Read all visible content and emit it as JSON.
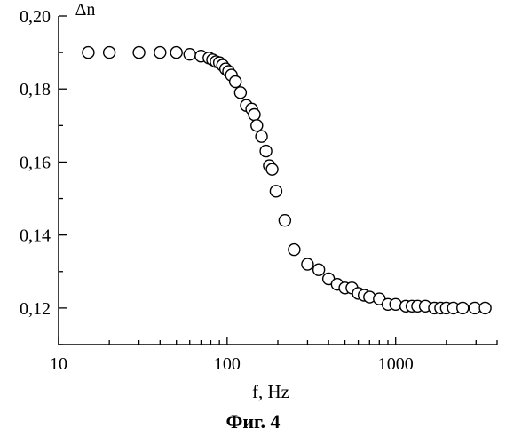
{
  "chart_data": {
    "type": "scatter",
    "xscale": "log",
    "xlim": [
      10,
      4000
    ],
    "ylim": [
      0.11,
      0.2
    ],
    "xticks": [
      10,
      100,
      1000
    ],
    "xtick_labels": [
      "10",
      "100",
      "1000"
    ],
    "yticks": [
      0.12,
      0.14,
      0.16,
      0.18,
      0.2
    ],
    "ytick_labels": [
      "0,12",
      "0,14",
      "0,16",
      "0,18",
      "0,20"
    ],
    "xlabel": "f, Hz",
    "ylabel": "Δn",
    "grid": false,
    "marker": "open-circle",
    "series": [
      {
        "x": [
          15,
          20,
          30,
          40,
          50,
          60,
          70,
          78,
          82,
          86,
          90,
          94,
          98,
          102,
          106,
          112,
          120,
          130,
          140,
          145,
          150,
          160,
          170,
          178,
          185,
          195,
          220,
          250,
          300,
          350,
          400,
          450,
          500,
          550,
          600,
          650,
          700,
          800,
          900,
          1000,
          1150,
          1250,
          1350,
          1500,
          1700,
          1850,
          2000,
          2200,
          2500,
          2950,
          3400
        ],
        "y": [
          0.19,
          0.19,
          0.19,
          0.19,
          0.19,
          0.1895,
          0.189,
          0.1885,
          0.188,
          0.1875,
          0.1872,
          0.1865,
          0.1855,
          0.1848,
          0.1838,
          0.182,
          0.179,
          0.1755,
          0.1745,
          0.173,
          0.17,
          0.167,
          0.163,
          0.159,
          0.158,
          0.152,
          0.144,
          0.136,
          0.132,
          0.1305,
          0.128,
          0.1265,
          0.1255,
          0.1255,
          0.124,
          0.1235,
          0.123,
          0.1225,
          0.121,
          0.121,
          0.1205,
          0.1205,
          0.1205,
          0.1205,
          0.12,
          0.12,
          0.12,
          0.12,
          0.12,
          0.12,
          0.12
        ]
      }
    ]
  },
  "caption": "Фиг. 4"
}
